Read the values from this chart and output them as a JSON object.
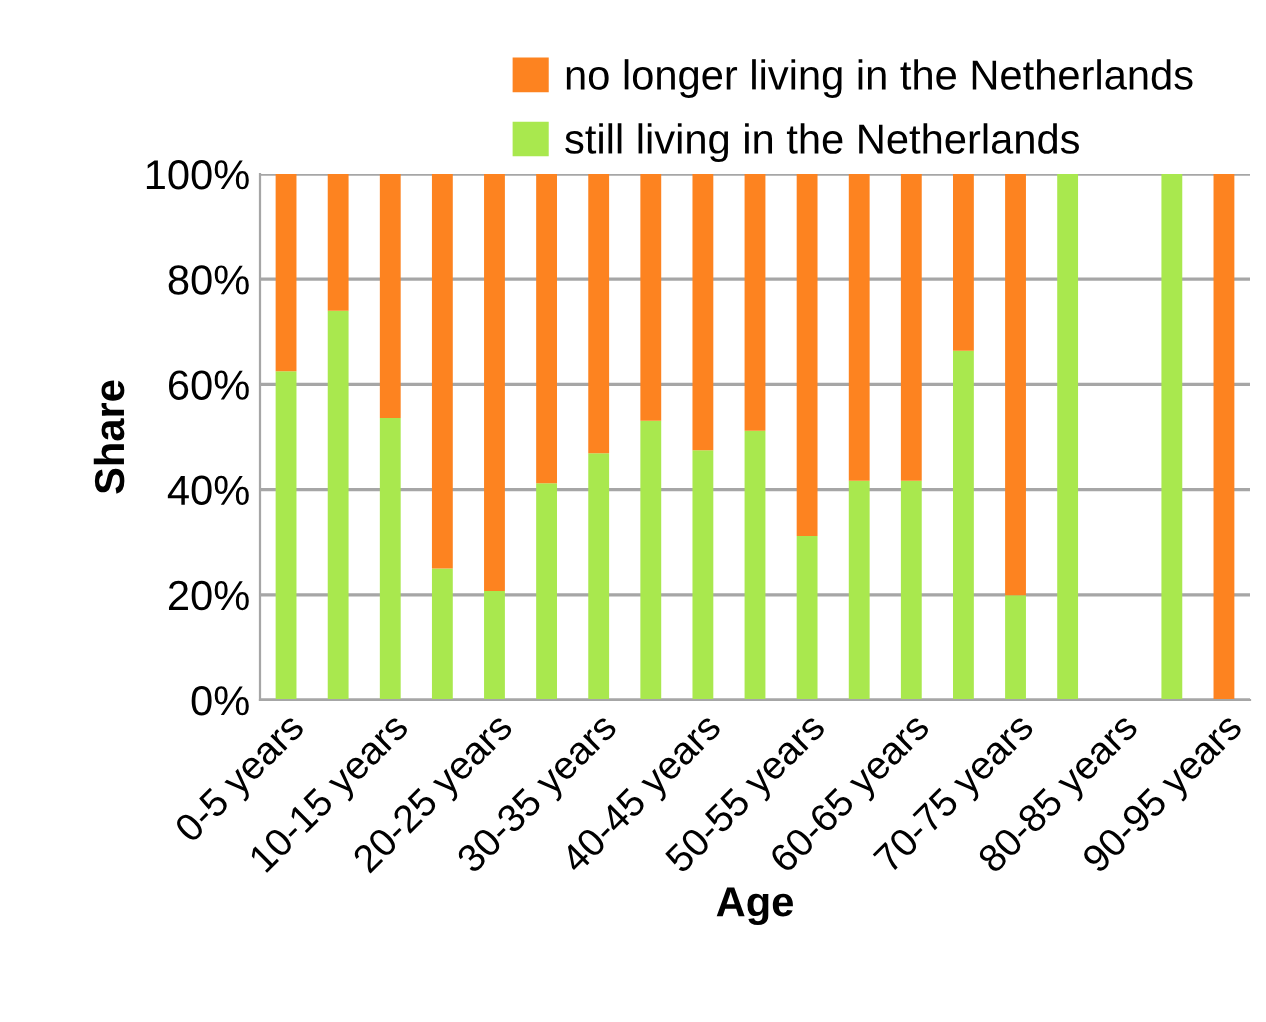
{
  "chart_data": {
    "type": "bar",
    "stacked": true,
    "xlabel": "Age",
    "ylabel": "Share",
    "categories": [
      "0-5 years",
      null,
      "10-15 years",
      null,
      "20-25 years",
      null,
      "30-35 years",
      null,
      "40-45 years",
      null,
      "50-55 years",
      null,
      "60-65 years",
      null,
      "70-75 years",
      null,
      "80-85 years",
      null,
      "90-95 years"
    ],
    "series": [
      {
        "name": "still living in the Netherlands",
        "color": "#a9e84e",
        "values": [
          62.5,
          74,
          53.6,
          25,
          20.7,
          41.2,
          46.9,
          53.1,
          47.5,
          51.2,
          31.2,
          41.7,
          41.7,
          66.4,
          19.9,
          100,
          null,
          100,
          0
        ]
      },
      {
        "name": "no longer living in the Netherlands",
        "color": "#fd8320",
        "values": [
          37.5,
          26,
          46.4,
          75,
          79.3,
          58.8,
          53.1,
          46.9,
          52.5,
          48.8,
          68.8,
          58.3,
          58.3,
          33.6,
          80.1,
          0,
          null,
          0,
          100
        ]
      }
    ],
    "ylim": [
      0,
      100
    ],
    "yticks": [
      {
        "value": 0,
        "label": "0%"
      },
      {
        "value": 20,
        "label": "20%"
      },
      {
        "value": 40,
        "label": "40%"
      },
      {
        "value": 60,
        "label": "60%"
      },
      {
        "value": 80,
        "label": "80%"
      },
      {
        "value": 100,
        "label": "100%"
      }
    ],
    "grid": "y",
    "legend": "top"
  }
}
